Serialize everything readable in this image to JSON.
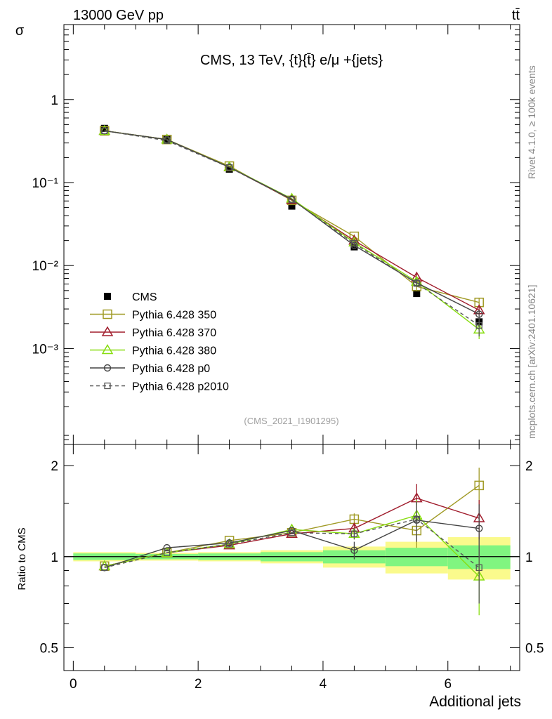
{
  "header": {
    "left": "13000 GeV pp",
    "right": "tt̄"
  },
  "side_labels": {
    "rivet": "Rivet 4.1.0, ≥ 100k events",
    "mcplots": "mcplots.cern.ch [arXiv:2401.10621]"
  },
  "colors": {
    "cms": "#000000",
    "p350": "#a09a25",
    "p370": "#a01c2c",
    "p380": "#88dd11",
    "p0": "#444444",
    "p2010": "#555555",
    "band_inner": "#80f580",
    "band_outer": "#fafa8c"
  },
  "chart_data": [
    {
      "type": "scatter",
      "panel": "main",
      "title": "CMS, 13 TeV, {t}{t̄} e/μ +{jets}",
      "ylabel": "σ",
      "xlabel": "",
      "yscale": "log",
      "xlim": [
        -0.15,
        7.15
      ],
      "ylim": [
        7e-05,
        8
      ],
      "y_ticks": [
        {
          "value": 1,
          "label": "1"
        },
        {
          "value": 0.1,
          "label": "10⁻¹"
        },
        {
          "value": 0.01,
          "label": "10⁻²"
        },
        {
          "value": 0.001,
          "label": "10⁻³"
        }
      ],
      "x": [
        0.5,
        1.5,
        2.5,
        3.5,
        4.5,
        5.5,
        6.5
      ],
      "watermark": "(CMS_2021_I1901295)",
      "legend_position": "bottom-left",
      "series": [
        {
          "key": "cms",
          "name": "CMS",
          "marker": "filled-square",
          "values": [
            0.45,
            0.33,
            0.145,
            0.052,
            0.0168,
            0.0046,
            0.0021
          ]
        },
        {
          "key": "p350",
          "name": "Pythia 6.428 350",
          "marker": "open-square",
          "values": [
            0.42,
            0.33,
            0.158,
            0.061,
            0.0225,
            0.0056,
            0.0036
          ],
          "errors": [
            0,
            0,
            0,
            0,
            0.0012,
            0.0006,
            0.0005
          ]
        },
        {
          "key": "p370",
          "name": "Pythia 6.428 370",
          "marker": "open-triangle",
          "values": [
            0.42,
            0.33,
            0.153,
            0.062,
            0.02,
            0.0072,
            0.0029
          ],
          "errors": [
            0,
            0,
            0,
            0,
            0.001,
            0.0008,
            0.0003
          ]
        },
        {
          "key": "p380",
          "name": "Pythia 6.428 380",
          "marker": "open-triangle",
          "values": [
            0.42,
            0.33,
            0.154,
            0.064,
            0.019,
            0.0064,
            0.0017
          ],
          "errors": [
            0,
            0,
            0,
            0,
            0.001,
            0.0008,
            0.0004
          ]
        },
        {
          "key": "p0",
          "name": "Pythia 6.428 p0",
          "marker": "open-circle",
          "values": [
            0.42,
            0.33,
            0.153,
            0.063,
            0.0175,
            0.0062,
            0.0026
          ],
          "errors": [
            0,
            0,
            0,
            0,
            0.001,
            0.0006,
            0.0003
          ]
        },
        {
          "key": "p2010",
          "name": "Pythia 6.428 p2010",
          "marker": "open-square-small",
          "dashed": true,
          "values": [
            0.42,
            0.32,
            0.152,
            0.062,
            0.0185,
            0.0061,
            0.0019
          ],
          "errors": [
            0,
            0,
            0,
            0,
            0.001,
            0.0006,
            0.0005
          ]
        }
      ]
    },
    {
      "type": "scatter",
      "panel": "ratio",
      "ylabel": "Ratio to CMS",
      "xlabel": "Additional jets",
      "yscale": "log",
      "xlim": [
        -0.15,
        7.15
      ],
      "ylim": [
        0.42,
        2.35
      ],
      "x_ticks": [
        {
          "value": 0,
          "label": "0"
        },
        {
          "value": 2,
          "label": "2"
        },
        {
          "value": 4,
          "label": "4"
        },
        {
          "value": 6,
          "label": "6"
        }
      ],
      "y_ticks": [
        {
          "value": 0.5,
          "label": "0.5"
        },
        {
          "value": 1,
          "label": "1"
        },
        {
          "value": 2,
          "label": "2"
        }
      ],
      "bins": [
        [
          0,
          1
        ],
        [
          1,
          2
        ],
        [
          2,
          3
        ],
        [
          3,
          4
        ],
        [
          4,
          5
        ],
        [
          5,
          6
        ],
        [
          6,
          7
        ]
      ],
      "band_inner": [
        0.025,
        0.02,
        0.025,
        0.035,
        0.05,
        0.07,
        0.09
      ],
      "band_outer": [
        0.035,
        0.03,
        0.035,
        0.05,
        0.08,
        0.12,
        0.16
      ],
      "x": [
        0.5,
        1.5,
        2.5,
        3.5,
        4.5,
        5.5,
        6.5
      ],
      "series": [
        {
          "key": "p350",
          "values": [
            0.93,
            1.03,
            1.13,
            1.2,
            1.33,
            1.22,
            1.72
          ],
          "errors": [
            0,
            0,
            0,
            0,
            0.06,
            0.15,
            0.25
          ]
        },
        {
          "key": "p370",
          "values": [
            0.93,
            1.03,
            1.09,
            1.19,
            1.24,
            1.56,
            1.34
          ],
          "errors": [
            0,
            0,
            0,
            0,
            0.05,
            0.18,
            0.2
          ]
        },
        {
          "key": "p380",
          "values": [
            0.93,
            1.03,
            1.1,
            1.23,
            1.19,
            1.37,
            0.86
          ],
          "errors": [
            0,
            0,
            0,
            0,
            0.05,
            0.17,
            0.22
          ]
        },
        {
          "key": "p0",
          "values": [
            0.92,
            1.07,
            1.11,
            1.22,
            1.05,
            1.32,
            1.24
          ],
          "errors": [
            0,
            0,
            0,
            0,
            0.07,
            0.2,
            0.25
          ]
        },
        {
          "key": "p2010",
          "values": [
            0.92,
            1.03,
            1.1,
            1.2,
            1.19,
            1.33,
            0.92
          ],
          "errors": [
            0,
            0,
            0,
            0,
            0.05,
            0.15,
            0.22
          ]
        }
      ]
    }
  ]
}
